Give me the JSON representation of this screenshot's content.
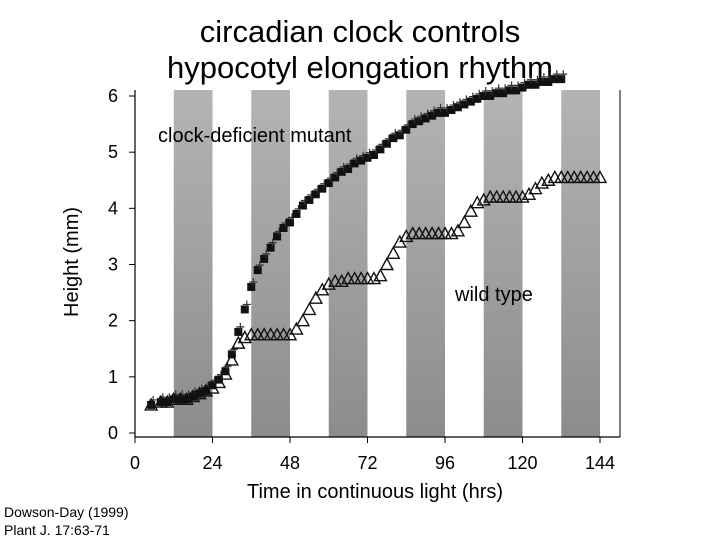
{
  "chart_data": {
    "type": "scatter",
    "title": [
      "circadian clock controls",
      "hypocotyl elongation rhythm"
    ],
    "xlabel": "Time in continuous light (hrs)",
    "ylabel": "Height (mm)",
    "xlim": [
      0,
      144
    ],
    "ylim": [
      0,
      6
    ],
    "xticks": [
      0,
      24,
      48,
      72,
      96,
      120,
      144
    ],
    "yticks": [
      0,
      1,
      2,
      3,
      4,
      5,
      6
    ],
    "grid": false,
    "shaded_intervals": [
      [
        12,
        24
      ],
      [
        36,
        48
      ],
      [
        60,
        72
      ],
      [
        84,
        96
      ],
      [
        108,
        120
      ],
      [
        132,
        144
      ]
    ],
    "annotations": [
      "clock-deficient mutant",
      "wild type"
    ],
    "series": [
      {
        "name": "clock-deficient mutant",
        "marker": "filled-square",
        "x": [
          5,
          8,
          10,
          12,
          14,
          16,
          18,
          20,
          22,
          24,
          26,
          28,
          30,
          32,
          34,
          36,
          38,
          40,
          42,
          44,
          46,
          48,
          50,
          52,
          54,
          56,
          58,
          60,
          62,
          64,
          66,
          68,
          70,
          72,
          74,
          76,
          78,
          80,
          82,
          84,
          86,
          88,
          90,
          92,
          94,
          96,
          98,
          100,
          102,
          104,
          106,
          108,
          110,
          112,
          114,
          116,
          118,
          120,
          122,
          124,
          126,
          128,
          130,
          132
        ],
        "y": [
          0.5,
          0.55,
          0.55,
          0.6,
          0.6,
          0.6,
          0.65,
          0.7,
          0.75,
          0.85,
          0.95,
          1.1,
          1.4,
          1.8,
          2.2,
          2.6,
          2.9,
          3.1,
          3.3,
          3.5,
          3.65,
          3.75,
          3.9,
          4.05,
          4.15,
          4.25,
          4.35,
          4.45,
          4.55,
          4.65,
          4.7,
          4.8,
          4.85,
          4.9,
          4.95,
          5.05,
          5.15,
          5.25,
          5.3,
          5.4,
          5.5,
          5.55,
          5.6,
          5.65,
          5.7,
          5.7,
          5.75,
          5.8,
          5.85,
          5.9,
          5.95,
          6.0,
          6.0,
          6.05,
          6.05,
          6.1,
          6.1,
          6.15,
          6.2,
          6.2,
          6.25,
          6.25,
          6.3,
          6.3
        ]
      },
      {
        "name": "wild type",
        "marker": "open-triangle",
        "x": [
          5,
          8,
          10,
          12,
          14,
          16,
          18,
          20,
          22,
          24,
          26,
          28,
          30,
          32,
          34,
          36,
          38,
          40,
          42,
          44,
          46,
          48,
          50,
          52,
          54,
          56,
          58,
          60,
          62,
          64,
          66,
          68,
          70,
          72,
          74,
          76,
          78,
          80,
          82,
          84,
          86,
          88,
          90,
          92,
          94,
          96,
          98,
          100,
          102,
          104,
          106,
          108,
          110,
          112,
          114,
          116,
          118,
          120,
          122,
          124,
          126,
          128,
          130,
          132,
          134,
          136,
          138,
          140,
          142,
          144
        ],
        "y": [
          0.5,
          0.55,
          0.55,
          0.6,
          0.6,
          0.6,
          0.65,
          0.7,
          0.75,
          0.8,
          0.9,
          1.05,
          1.3,
          1.6,
          1.7,
          1.75,
          1.75,
          1.75,
          1.75,
          1.75,
          1.75,
          1.75,
          1.85,
          2.0,
          2.2,
          2.4,
          2.55,
          2.65,
          2.7,
          2.7,
          2.75,
          2.75,
          2.75,
          2.75,
          2.75,
          2.8,
          3.0,
          3.2,
          3.4,
          3.5,
          3.55,
          3.55,
          3.55,
          3.55,
          3.55,
          3.55,
          3.55,
          3.6,
          3.75,
          3.95,
          4.1,
          4.15,
          4.2,
          4.2,
          4.2,
          4.2,
          4.2,
          4.2,
          4.25,
          4.35,
          4.45,
          4.5,
          4.55,
          4.55,
          4.55,
          4.55,
          4.55,
          4.55,
          4.55,
          4.55
        ]
      }
    ]
  },
  "citation": [
    "Dowson-Day (1999)",
    "Plant J. 17:63-71"
  ]
}
